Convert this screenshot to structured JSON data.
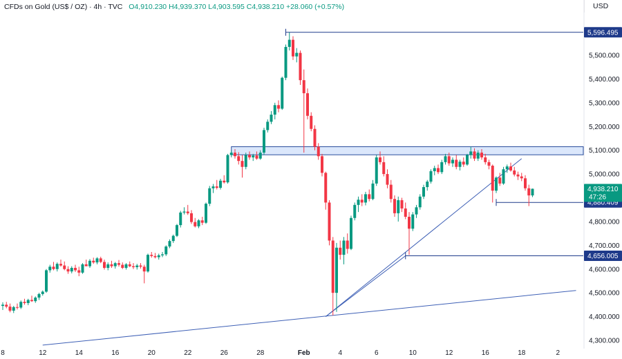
{
  "header": {
    "symbol": "CFDs on Gold (US$ / OZ) · 4h · TVC",
    "open": "O4,910.230",
    "high": "H4,939.370",
    "low": "L4,903.595",
    "close": "C4,938.210",
    "change": "+28.060 (+0.57%)",
    "currency": "USD"
  },
  "colors": {
    "up": "#089981",
    "down": "#f23645",
    "trendline": "#3d5fb5",
    "zone_fill": "#dbe7fb",
    "zone_border": "#2a4d9c",
    "tag_blue": "#1e3a8a",
    "tag_price": "#089981"
  },
  "chart_data": {
    "type": "candlestick",
    "title": "CFDs on Gold (US$ / OZ)",
    "timeframe": "4h",
    "ylim": [
      4280,
      5650
    ],
    "y_ticks": [
      4300,
      4400,
      4500,
      4600,
      4700,
      4800,
      4900,
      5000,
      5100,
      5200,
      5300,
      5400,
      5500
    ],
    "y_tick_labels": [
      "4,300.000",
      "4,400.000",
      "4,500.000",
      "4,600.000",
      "4,700.000",
      "4,800.000",
      "4,900.000",
      "5,000.000",
      "5,100.000",
      "5,200.000",
      "5,300.000",
      "5,400.000",
      "5,500.000"
    ],
    "x_ticks": [
      {
        "label": "8",
        "index": 0
      },
      {
        "label": "12",
        "index": 11
      },
      {
        "label": "14",
        "index": 21
      },
      {
        "label": "16",
        "index": 31
      },
      {
        "label": "20",
        "index": 41
      },
      {
        "label": "22",
        "index": 51
      },
      {
        "label": "26",
        "index": 61
      },
      {
        "label": "28",
        "index": 71
      },
      {
        "label": "Feb",
        "index": 83
      },
      {
        "label": "4",
        "index": 93
      },
      {
        "label": "6",
        "index": 103
      },
      {
        "label": "10",
        "index": 113
      },
      {
        "label": "12",
        "index": 123
      },
      {
        "label": "16",
        "index": 133
      },
      {
        "label": "18",
        "index": 143
      },
      {
        "label": "2",
        "index": 153
      }
    ],
    "candles": [
      {
        "o": 4445,
        "h": 4460,
        "l": 4428,
        "c": 4450
      },
      {
        "o": 4450,
        "h": 4462,
        "l": 4435,
        "c": 4442
      },
      {
        "o": 4442,
        "h": 4455,
        "l": 4418,
        "c": 4425
      },
      {
        "o": 4425,
        "h": 4445,
        "l": 4415,
        "c": 4440
      },
      {
        "o": 4440,
        "h": 4455,
        "l": 4430,
        "c": 4438
      },
      {
        "o": 4438,
        "h": 4468,
        "l": 4432,
        "c": 4462
      },
      {
        "o": 4462,
        "h": 4475,
        "l": 4450,
        "c": 4457
      },
      {
        "o": 4457,
        "h": 4475,
        "l": 4448,
        "c": 4470
      },
      {
        "o": 4470,
        "h": 4488,
        "l": 4462,
        "c": 4465
      },
      {
        "o": 4465,
        "h": 4485,
        "l": 4458,
        "c": 4480
      },
      {
        "o": 4480,
        "h": 4500,
        "l": 4470,
        "c": 4495
      },
      {
        "o": 4495,
        "h": 4510,
        "l": 4488,
        "c": 4505
      },
      {
        "o": 4505,
        "h": 4600,
        "l": 4500,
        "c": 4595
      },
      {
        "o": 4595,
        "h": 4618,
        "l": 4585,
        "c": 4610
      },
      {
        "o": 4610,
        "h": 4630,
        "l": 4595,
        "c": 4600
      },
      {
        "o": 4600,
        "h": 4628,
        "l": 4590,
        "c": 4622
      },
      {
        "o": 4622,
        "h": 4640,
        "l": 4610,
        "c": 4615
      },
      {
        "o": 4615,
        "h": 4632,
        "l": 4595,
        "c": 4600
      },
      {
        "o": 4600,
        "h": 4612,
        "l": 4580,
        "c": 4590
      },
      {
        "o": 4590,
        "h": 4612,
        "l": 4582,
        "c": 4605
      },
      {
        "o": 4605,
        "h": 4618,
        "l": 4588,
        "c": 4595
      },
      {
        "o": 4595,
        "h": 4610,
        "l": 4570,
        "c": 4585
      },
      {
        "o": 4585,
        "h": 4625,
        "l": 4580,
        "c": 4620
      },
      {
        "o": 4620,
        "h": 4640,
        "l": 4612,
        "c": 4612
      },
      {
        "o": 4612,
        "h": 4642,
        "l": 4605,
        "c": 4635
      },
      {
        "o": 4635,
        "h": 4648,
        "l": 4622,
        "c": 4628
      },
      {
        "o": 4628,
        "h": 4650,
        "l": 4620,
        "c": 4645
      },
      {
        "o": 4645,
        "h": 4652,
        "l": 4625,
        "c": 4630
      },
      {
        "o": 4630,
        "h": 4640,
        "l": 4598,
        "c": 4605
      },
      {
        "o": 4605,
        "h": 4628,
        "l": 4595,
        "c": 4620
      },
      {
        "o": 4620,
        "h": 4635,
        "l": 4605,
        "c": 4612
      },
      {
        "o": 4612,
        "h": 4630,
        "l": 4602,
        "c": 4625
      },
      {
        "o": 4625,
        "h": 4638,
        "l": 4610,
        "c": 4618
      },
      {
        "o": 4618,
        "h": 4628,
        "l": 4600,
        "c": 4605
      },
      {
        "o": 4605,
        "h": 4625,
        "l": 4598,
        "c": 4620
      },
      {
        "o": 4620,
        "h": 4632,
        "l": 4608,
        "c": 4612
      },
      {
        "o": 4612,
        "h": 4625,
        "l": 4600,
        "c": 4608
      },
      {
        "o": 4608,
        "h": 4622,
        "l": 4598,
        "c": 4615
      },
      {
        "o": 4615,
        "h": 4625,
        "l": 4602,
        "c": 4610
      },
      {
        "o": 4610,
        "h": 4618,
        "l": 4540,
        "c": 4590
      },
      {
        "o": 4590,
        "h": 4665,
        "l": 4585,
        "c": 4660
      },
      {
        "o": 4660,
        "h": 4672,
        "l": 4648,
        "c": 4655
      },
      {
        "o": 4655,
        "h": 4668,
        "l": 4645,
        "c": 4650
      },
      {
        "o": 4650,
        "h": 4665,
        "l": 4640,
        "c": 4658
      },
      {
        "o": 4658,
        "h": 4672,
        "l": 4650,
        "c": 4662
      },
      {
        "o": 4662,
        "h": 4700,
        "l": 4655,
        "c": 4695
      },
      {
        "o": 4695,
        "h": 4725,
        "l": 4688,
        "c": 4718
      },
      {
        "o": 4718,
        "h": 4745,
        "l": 4710,
        "c": 4740
      },
      {
        "o": 4740,
        "h": 4790,
        "l": 4735,
        "c": 4785
      },
      {
        "o": 4785,
        "h": 4845,
        "l": 4775,
        "c": 4838
      },
      {
        "o": 4838,
        "h": 4860,
        "l": 4830,
        "c": 4842
      },
      {
        "o": 4842,
        "h": 4870,
        "l": 4828,
        "c": 4835
      },
      {
        "o": 4835,
        "h": 4848,
        "l": 4790,
        "c": 4798
      },
      {
        "o": 4798,
        "h": 4815,
        "l": 4775,
        "c": 4780
      },
      {
        "o": 4780,
        "h": 4810,
        "l": 4772,
        "c": 4805
      },
      {
        "o": 4805,
        "h": 4820,
        "l": 4785,
        "c": 4795
      },
      {
        "o": 4795,
        "h": 4880,
        "l": 4790,
        "c": 4875
      },
      {
        "o": 4875,
        "h": 4950,
        "l": 4865,
        "c": 4940
      },
      {
        "o": 4940,
        "h": 4958,
        "l": 4920,
        "c": 4948
      },
      {
        "o": 4948,
        "h": 4975,
        "l": 4935,
        "c": 4942
      },
      {
        "o": 4942,
        "h": 4980,
        "l": 4935,
        "c": 4972
      },
      {
        "o": 4972,
        "h": 4995,
        "l": 4960,
        "c": 4965
      },
      {
        "o": 4965,
        "h": 5085,
        "l": 4960,
        "c": 5080
      },
      {
        "o": 5080,
        "h": 5100,
        "l": 5070,
        "c": 5090
      },
      {
        "o": 5090,
        "h": 5105,
        "l": 5065,
        "c": 5075
      },
      {
        "o": 5075,
        "h": 5092,
        "l": 5040,
        "c": 5055
      },
      {
        "o": 5055,
        "h": 5080,
        "l": 4985,
        "c": 5030
      },
      {
        "o": 5030,
        "h": 5090,
        "l": 5020,
        "c": 5080
      },
      {
        "o": 5080,
        "h": 5095,
        "l": 5060,
        "c": 5070
      },
      {
        "o": 5070,
        "h": 5085,
        "l": 5055,
        "c": 5078
      },
      {
        "o": 5078,
        "h": 5095,
        "l": 5060,
        "c": 5065
      },
      {
        "o": 5065,
        "h": 5100,
        "l": 5060,
        "c": 5090
      },
      {
        "o": 5090,
        "h": 5195,
        "l": 5080,
        "c": 5185
      },
      {
        "o": 5185,
        "h": 5230,
        "l": 5175,
        "c": 5220
      },
      {
        "o": 5220,
        "h": 5265,
        "l": 5210,
        "c": 5250
      },
      {
        "o": 5250,
        "h": 5300,
        "l": 5230,
        "c": 5290
      },
      {
        "o": 5290,
        "h": 5310,
        "l": 5260,
        "c": 5275
      },
      {
        "o": 5275,
        "h": 5410,
        "l": 5270,
        "c": 5405
      },
      {
        "o": 5405,
        "h": 5545,
        "l": 5395,
        "c": 5535
      },
      {
        "o": 5535,
        "h": 5596,
        "l": 5520,
        "c": 5565
      },
      {
        "o": 5565,
        "h": 5580,
        "l": 5480,
        "c": 5495
      },
      {
        "o": 5495,
        "h": 5530,
        "l": 5470,
        "c": 5510
      },
      {
        "o": 5510,
        "h": 5520,
        "l": 5375,
        "c": 5395
      },
      {
        "o": 5395,
        "h": 5440,
        "l": 5090,
        "c": 5340
      },
      {
        "o": 5340,
        "h": 5360,
        "l": 5230,
        "c": 5245
      },
      {
        "o": 5245,
        "h": 5260,
        "l": 5180,
        "c": 5190
      },
      {
        "o": 5190,
        "h": 5205,
        "l": 5100,
        "c": 5115
      },
      {
        "o": 5115,
        "h": 5130,
        "l": 5060,
        "c": 5075
      },
      {
        "o": 5075,
        "h": 5085,
        "l": 4990,
        "c": 5005
      },
      {
        "o": 5005,
        "h": 5010,
        "l": 4850,
        "c": 4880
      },
      {
        "o": 4880,
        "h": 4890,
        "l": 4700,
        "c": 4720
      },
      {
        "o": 4720,
        "h": 4735,
        "l": 4405,
        "c": 4500
      },
      {
        "o": 4500,
        "h": 4710,
        "l": 4420,
        "c": 4690
      },
      {
        "o": 4690,
        "h": 4720,
        "l": 4640,
        "c": 4660
      },
      {
        "o": 4660,
        "h": 4735,
        "l": 4620,
        "c": 4720
      },
      {
        "o": 4720,
        "h": 4750,
        "l": 4665,
        "c": 4685
      },
      {
        "o": 4685,
        "h": 4825,
        "l": 4680,
        "c": 4815
      },
      {
        "o": 4815,
        "h": 4880,
        "l": 4805,
        "c": 4870
      },
      {
        "o": 4870,
        "h": 4905,
        "l": 4840,
        "c": 4892
      },
      {
        "o": 4892,
        "h": 4915,
        "l": 4865,
        "c": 4880
      },
      {
        "o": 4880,
        "h": 4925,
        "l": 4868,
        "c": 4915
      },
      {
        "o": 4915,
        "h": 4935,
        "l": 4885,
        "c": 4895
      },
      {
        "o": 4895,
        "h": 4975,
        "l": 4890,
        "c": 4960
      },
      {
        "o": 4960,
        "h": 5080,
        "l": 4950,
        "c": 5070
      },
      {
        "o": 5070,
        "h": 5095,
        "l": 5040,
        "c": 5050
      },
      {
        "o": 5050,
        "h": 5075,
        "l": 4990,
        "c": 5000
      },
      {
        "o": 5000,
        "h": 5020,
        "l": 4940,
        "c": 4955
      },
      {
        "o": 4955,
        "h": 4975,
        "l": 4880,
        "c": 4895
      },
      {
        "o": 4895,
        "h": 4910,
        "l": 4820,
        "c": 4835
      },
      {
        "o": 4835,
        "h": 4905,
        "l": 4800,
        "c": 4890
      },
      {
        "o": 4890,
        "h": 4900,
        "l": 4840,
        "c": 4855
      },
      {
        "o": 4855,
        "h": 4880,
        "l": 4810,
        "c": 4820
      },
      {
        "o": 4820,
        "h": 4840,
        "l": 4660,
        "c": 4770
      },
      {
        "o": 4770,
        "h": 4840,
        "l": 4760,
        "c": 4830
      },
      {
        "o": 4830,
        "h": 4870,
        "l": 4815,
        "c": 4860
      },
      {
        "o": 4860,
        "h": 4915,
        "l": 4850,
        "c": 4905
      },
      {
        "o": 4905,
        "h": 4955,
        "l": 4895,
        "c": 4945
      },
      {
        "o": 4945,
        "h": 4975,
        "l": 4930,
        "c": 4968
      },
      {
        "o": 4968,
        "h": 5020,
        "l": 4960,
        "c": 5012
      },
      {
        "o": 5012,
        "h": 5035,
        "l": 4995,
        "c": 5025
      },
      {
        "o": 5025,
        "h": 5040,
        "l": 5000,
        "c": 5008
      },
      {
        "o": 5008,
        "h": 5060,
        "l": 5000,
        "c": 5050
      },
      {
        "o": 5050,
        "h": 5085,
        "l": 5040,
        "c": 5075
      },
      {
        "o": 5075,
        "h": 5090,
        "l": 5035,
        "c": 5045
      },
      {
        "o": 5045,
        "h": 5070,
        "l": 5030,
        "c": 5060
      },
      {
        "o": 5060,
        "h": 5080,
        "l": 5020,
        "c": 5030
      },
      {
        "o": 5030,
        "h": 5060,
        "l": 5015,
        "c": 5052
      },
      {
        "o": 5052,
        "h": 5070,
        "l": 5030,
        "c": 5040
      },
      {
        "o": 5040,
        "h": 5085,
        "l": 5035,
        "c": 5080
      },
      {
        "o": 5080,
        "h": 5115,
        "l": 5065,
        "c": 5095
      },
      {
        "o": 5095,
        "h": 5108,
        "l": 5055,
        "c": 5065
      },
      {
        "o": 5065,
        "h": 5100,
        "l": 5055,
        "c": 5090
      },
      {
        "o": 5090,
        "h": 5105,
        "l": 5060,
        "c": 5070
      },
      {
        "o": 5070,
        "h": 5085,
        "l": 5040,
        "c": 5050
      },
      {
        "o": 5050,
        "h": 5060,
        "l": 5020,
        "c": 5035
      },
      {
        "o": 5035,
        "h": 5040,
        "l": 4880,
        "c": 4930
      },
      {
        "o": 4930,
        "h": 4990,
        "l": 4920,
        "c": 4985
      },
      {
        "o": 4985,
        "h": 5005,
        "l": 4950,
        "c": 4960
      },
      {
        "o": 4960,
        "h": 5030,
        "l": 4955,
        "c": 5020
      },
      {
        "o": 5020,
        "h": 5040,
        "l": 5005,
        "c": 5032
      },
      {
        "o": 5032,
        "h": 5048,
        "l": 5010,
        "c": 5015
      },
      {
        "o": 5015,
        "h": 5030,
        "l": 4990,
        "c": 4998
      },
      {
        "o": 4998,
        "h": 5010,
        "l": 4975,
        "c": 4990
      },
      {
        "o": 4990,
        "h": 5005,
        "l": 4970,
        "c": 4982
      },
      {
        "o": 4982,
        "h": 4995,
        "l": 4930,
        "c": 4940
      },
      {
        "o": 4940,
        "h": 4955,
        "l": 4865,
        "c": 4910
      },
      {
        "o": 4910,
        "h": 4939,
        "l": 4903,
        "c": 4938
      }
    ],
    "levels": [
      {
        "label": "5,596.495",
        "value": 5596.495,
        "from_index": 78
      },
      {
        "label": "4,880.409",
        "value": 4880.409,
        "from_index": 136
      },
      {
        "label": "4,656.005",
        "value": 4656.005,
        "from_index": 111
      }
    ],
    "resistance_zone": {
      "from_index": 63,
      "low": 5081,
      "high": 5115
    },
    "trendlines": [
      {
        "from": {
          "index": 89,
          "value": 4400
        },
        "to": {
          "index": 143,
          "value": 5065
        }
      },
      {
        "from": {
          "index": 89,
          "value": 4400
        },
        "to": {
          "index": 111,
          "value": 4656
        }
      },
      {
        "from": {
          "index": 11,
          "value": 4280
        },
        "to": {
          "index": 158,
          "value": 4510
        }
      }
    ],
    "last_price": {
      "label": "4,938.210",
      "countdown": "47:26",
      "value": 4938.21
    }
  }
}
